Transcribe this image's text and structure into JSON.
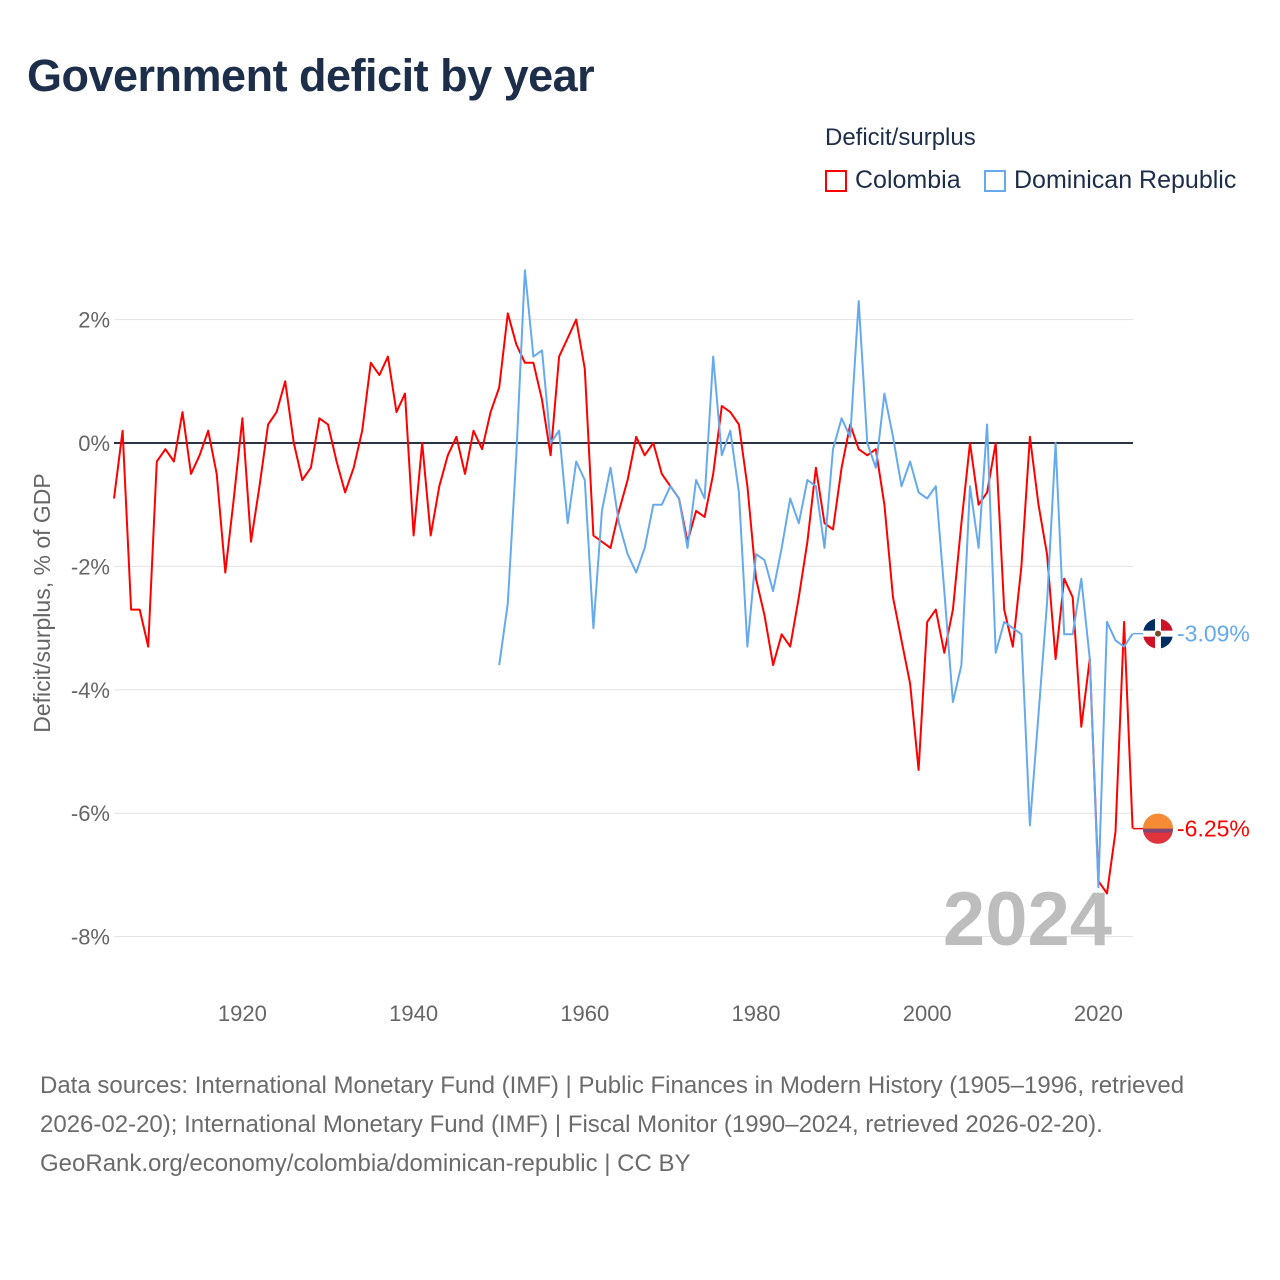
{
  "chart_data": {
    "type": "line",
    "title": "Government deficit by year",
    "ylabel": "Deficit/surplus, % of GDP",
    "xlabel": "",
    "legend_title": "Deficit/surplus",
    "legend_position": "top-right",
    "ylim": [
      -8.5,
      3
    ],
    "xlim": [
      1905,
      2024
    ],
    "yticks": [
      2,
      0,
      -2,
      -4,
      -6,
      -8
    ],
    "ytick_labels": [
      "2%",
      "0%",
      "-2%",
      "-4%",
      "-6%",
      "-8%"
    ],
    "xticks": [
      1920,
      1940,
      1960,
      1980,
      2000,
      2020
    ],
    "xtick_labels": [
      "1920",
      "1940",
      "1960",
      "1980",
      "2000",
      "2020"
    ],
    "grid": true,
    "year_watermark": "2024",
    "series": [
      {
        "name": "Colombia",
        "color": "#ff0000",
        "end_label": "-6.25%",
        "start_year": 1905,
        "values": [
          -0.9,
          0.2,
          -2.7,
          -2.7,
          -3.3,
          -0.3,
          -0.1,
          -0.3,
          0.5,
          -0.5,
          -0.2,
          0.2,
          -0.5,
          -2.1,
          -0.9,
          0.4,
          -1.6,
          -0.7,
          0.3,
          0.5,
          1.0,
          0.0,
          -0.6,
          -0.4,
          0.4,
          0.3,
          -0.3,
          -0.8,
          -0.4,
          0.2,
          1.3,
          1.1,
          1.4,
          0.5,
          0.8,
          -1.5,
          0.0,
          -1.5,
          -0.7,
          -0.2,
          0.1,
          -0.5,
          0.2,
          -0.1,
          0.5,
          0.9,
          2.1,
          1.6,
          1.3,
          1.3,
          0.7,
          -0.2,
          1.4,
          1.7,
          2.0,
          1.2,
          -1.5,
          -1.6,
          -1.7,
          -1.1,
          -0.6,
          0.1,
          -0.2,
          0.0,
          -0.5,
          -0.7,
          -0.9,
          -1.6,
          -1.1,
          -1.2,
          -0.5,
          0.6,
          0.5,
          0.3,
          -0.7,
          -2.2,
          -2.8,
          -3.6,
          -3.1,
          -3.3,
          -2.5,
          -1.6,
          -0.4,
          -1.3,
          -1.4,
          -0.4,
          0.3,
          -0.1,
          -0.2,
          -0.1,
          -1.0,
          -2.5,
          -3.2,
          -3.9,
          -5.3,
          -2.9,
          -2.7,
          -3.4,
          -2.7,
          -1.3,
          0.0,
          -1.0,
          -0.8,
          0.0,
          -2.7,
          -3.3,
          -2.0,
          0.1,
          -1.0,
          -1.8,
          -3.5,
          -2.2,
          -2.5,
          -4.6,
          -3.5,
          -7.1,
          -7.3,
          -6.3,
          -2.9,
          -6.25
        ]
      },
      {
        "name": "Dominican Republic",
        "color": "#66aaee",
        "end_label": "-3.09%",
        "start_year": 1950,
        "values": [
          -3.6,
          -2.6,
          -0.2,
          2.8,
          1.4,
          1.5,
          0.0,
          0.2,
          -1.3,
          -0.3,
          -0.6,
          -3.0,
          -1.1,
          -0.4,
          -1.3,
          -1.8,
          -2.1,
          -1.7,
          -1.0,
          -1.0,
          -0.7,
          -0.9,
          -1.7,
          -0.6,
          -0.9,
          1.4,
          -0.2,
          0.2,
          -0.8,
          -3.3,
          -1.8,
          -1.9,
          -2.4,
          -1.7,
          -0.9,
          -1.3,
          -0.6,
          -0.7,
          -1.7,
          -0.1,
          0.4,
          0.1,
          2.3,
          0.0,
          -0.4,
          0.8,
          0.1,
          -0.7,
          -0.3,
          -0.8,
          -0.9,
          -0.7,
          -2.4,
          -4.2,
          -3.6,
          -0.7,
          -1.7,
          0.3,
          -3.4,
          -2.9,
          -3.0,
          -3.1,
          -6.2,
          -4.4,
          -2.6,
          0.0,
          -3.1,
          -3.1,
          -2.2,
          -3.5,
          -7.2,
          -2.9,
          -3.2,
          -3.3,
          -3.09
        ]
      }
    ]
  },
  "footer": {
    "sources": "Data sources: International Monetary Fund (IMF) | Public Finances in Modern History (1905–1996, retrieved 2026-02-20); International Monetary Fund (IMF) | Fiscal Monitor (1990–2024, retrieved 2026-02-20).",
    "credit": "GeoRank.org/economy/colombia/dominican-republic | CC BY"
  }
}
